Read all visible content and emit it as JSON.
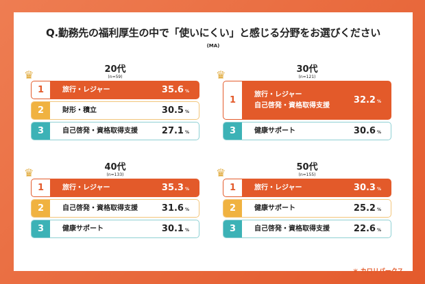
{
  "title": "Q.勤務先の福利厚生の中で「使いにくい」と感じる分野をお選びください",
  "subtitle": "(MA)",
  "colors": {
    "rank1": "#e35a2a",
    "rank2": "#f0b240",
    "rank3": "#3cb2b6"
  },
  "panels": [
    {
      "age": "20代",
      "n": "(n=59)",
      "rows": [
        {
          "rank": "1",
          "label": "旅行・レジャー",
          "value": "35.6",
          "unit": "%"
        },
        {
          "rank": "2",
          "label": "財形・積立",
          "value": "30.5",
          "unit": "%"
        },
        {
          "rank": "3",
          "label": "自己啓発・資格取得支援",
          "value": "27.1",
          "unit": "%"
        }
      ]
    },
    {
      "age": "30代",
      "n": "(n=121)",
      "rows": [
        {
          "rank": "1",
          "label": "旅行・レジャー",
          "label2": "自己啓発・資格取得支援",
          "value": "32.2",
          "unit": "%"
        },
        {
          "rank": "3",
          "label": "健康サポート",
          "value": "30.6",
          "unit": "%"
        }
      ]
    },
    {
      "age": "40代",
      "n": "(n=133)",
      "rows": [
        {
          "rank": "1",
          "label": "旅行・レジャー",
          "value": "35.3",
          "unit": "%"
        },
        {
          "rank": "2",
          "label": "自己啓発・資格取得支援",
          "value": "31.6",
          "unit": "%"
        },
        {
          "rank": "3",
          "label": "健康サポート",
          "value": "30.1",
          "unit": "%"
        }
      ]
    },
    {
      "age": "50代",
      "n": "(n=155)",
      "rows": [
        {
          "rank": "1",
          "label": "旅行・レジャー",
          "value": "30.3",
          "unit": "%"
        },
        {
          "rank": "2",
          "label": "健康サポート",
          "value": "25.2",
          "unit": "%"
        },
        {
          "rank": "3",
          "label": "自己啓発・資格取得支援",
          "value": "22.6",
          "unit": "%"
        }
      ]
    }
  ],
  "logo": "カロリパークス"
}
